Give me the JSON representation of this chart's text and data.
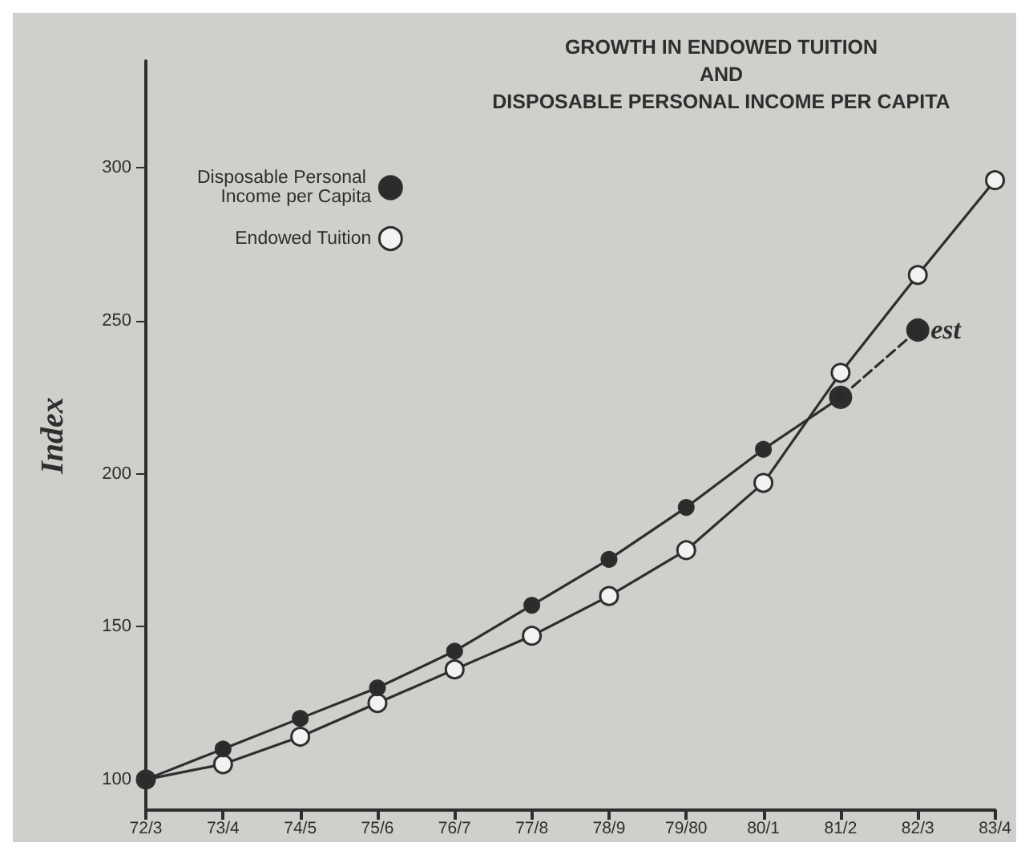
{
  "chart_data": {
    "type": "line",
    "title": "GROWTH IN ENDOWED TUITION\nAND\nDISPOSABLE PERSONAL INCOME PER CAPITA",
    "ylabel": "Index",
    "categories": [
      "72/3",
      "73/4",
      "74/5",
      "75/6",
      "76/7",
      "77/8",
      "78/9",
      "79/80",
      "80/1",
      "81/2",
      "82/3",
      "83/4"
    ],
    "series": [
      {
        "name": "Disposable Personal Income per Capita",
        "color": "#2b2b2b",
        "values": [
          100,
          110,
          120,
          130,
          142,
          157,
          172,
          189,
          208,
          225,
          null,
          null
        ]
      },
      {
        "name": "Endowed Tuition",
        "color": "#f2f2f2",
        "values": [
          100,
          105,
          114,
          125,
          136,
          147,
          160,
          175,
          197,
          233,
          265,
          296
        ]
      },
      {
        "color": "#2b2b2b",
        "line_style": "dashed",
        "values": [
          null,
          null,
          null,
          null,
          null,
          null,
          null,
          null,
          null,
          225,
          247,
          null
        ]
      }
    ],
    "annotations": [
      {
        "text": "est",
        "x": "82/3",
        "y": 247
      }
    ],
    "ylim": [
      90,
      335
    ],
    "yticks": [
      100,
      150,
      200,
      250,
      300
    ],
    "grid": false,
    "legend": "top left",
    "marker": "circle",
    "line_style": "solid"
  }
}
